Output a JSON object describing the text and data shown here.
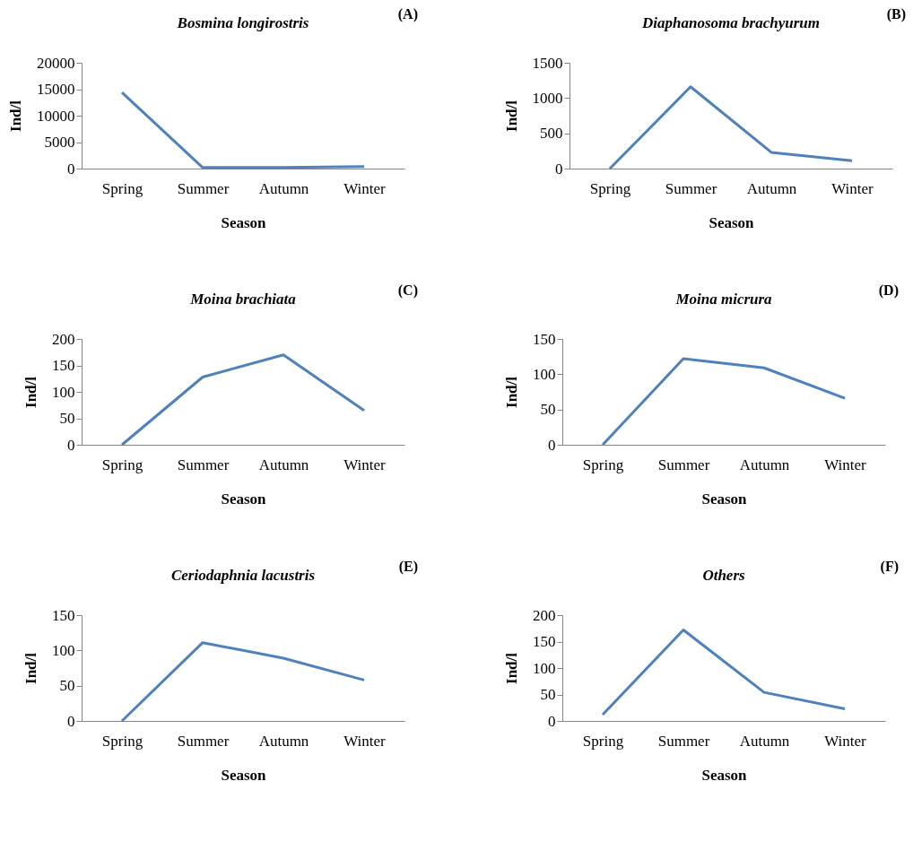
{
  "chart_data": [
    {
      "type": "line",
      "title": "Bosmina longirostris",
      "xlabel": "Season",
      "ylabel": "Ind/l",
      "annotations": [
        "(A)"
      ],
      "categories": [
        "Spring",
        "Summer",
        "Autumn",
        "Winter"
      ],
      "ylim": [
        0,
        20000
      ],
      "yticks": [
        0,
        5000,
        10000,
        15000,
        20000
      ],
      "series": [
        {
          "color": "#4f81bd",
          "values": [
            14400,
            200,
            200,
            400
          ]
        }
      ]
    },
    {
      "type": "line",
      "title": "Diaphanosoma brachyurum",
      "xlabel": "Season",
      "ylabel": "Ind/l",
      "annotations": [
        "(B)"
      ],
      "categories": [
        "Spring",
        "Summer",
        "Autumn",
        "Winter"
      ],
      "ylim": [
        0,
        1500
      ],
      "yticks": [
        0,
        500,
        1000,
        1500
      ],
      "series": [
        {
          "color": "#4f81bd",
          "values": [
            0,
            1160,
            230,
            110
          ]
        }
      ]
    },
    {
      "type": "line",
      "title": "Moina brachiata",
      "xlabel": "Season",
      "ylabel": "Ind/l",
      "annotations": [
        "(C)"
      ],
      "categories": [
        "Spring",
        "Summer",
        "Autumn",
        "Winter"
      ],
      "ylim": [
        0,
        200
      ],
      "yticks": [
        0,
        50,
        100,
        150,
        200
      ],
      "series": [
        {
          "color": "#4f81bd",
          "values": [
            0,
            128,
            170,
            65
          ]
        }
      ]
    },
    {
      "type": "line",
      "title": "Moina micrura",
      "xlabel": "Season",
      "ylabel": "Ind/l",
      "annotations": [
        "(D)"
      ],
      "categories": [
        "Spring",
        "Summer",
        "Autumn",
        "Winter"
      ],
      "ylim": [
        0,
        150
      ],
      "yticks": [
        0,
        50,
        100,
        150
      ],
      "series": [
        {
          "color": "#4f81bd",
          "values": [
            0,
            122,
            109,
            66
          ]
        }
      ]
    },
    {
      "type": "line",
      "title": "Ceriodaphnia lacustris",
      "xlabel": "Season",
      "ylabel": "Ind/l",
      "annotations": [
        "(E)"
      ],
      "categories": [
        "Spring",
        "Summer",
        "Autumn",
        "Winter"
      ],
      "ylim": [
        0,
        150
      ],
      "yticks": [
        0,
        50,
        100,
        150
      ],
      "series": [
        {
          "color": "#4f81bd",
          "values": [
            0,
            111,
            89,
            58
          ]
        }
      ]
    },
    {
      "type": "line",
      "title": "Others",
      "xlabel": "Season",
      "ylabel": "Ind/l",
      "annotations": [
        "(F)"
      ],
      "categories": [
        "Spring",
        "Summer",
        "Autumn",
        "Winter"
      ],
      "ylim": [
        0,
        200
      ],
      "yticks": [
        0,
        50,
        100,
        150,
        200
      ],
      "series": [
        {
          "color": "#4f81bd",
          "values": [
            12,
            172,
            54,
            23
          ]
        }
      ]
    }
  ]
}
